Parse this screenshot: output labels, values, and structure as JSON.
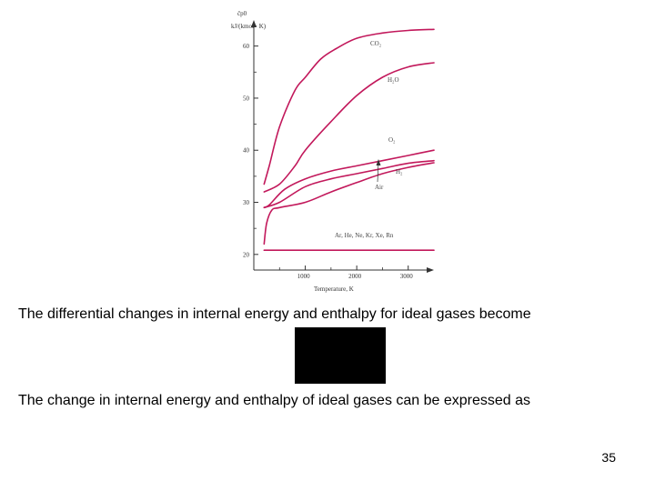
{
  "slide": {
    "paragraph_1": "The differential changes in internal energy and enthalpy for ideal gases become",
    "paragraph_2": "The change in internal energy and enthalpy of ideal gases can be expressed as",
    "page_number": "35"
  },
  "colors": {
    "curve": "#c2185b",
    "axis": "#333333",
    "equation_box": "#000000"
  },
  "chart_data": {
    "type": "line",
    "xlabel": "Temperature, K",
    "ylabel_symbol": "c̄p0",
    "ylabel_units": "kJ/(kmol · K)",
    "xlim": [
      0,
      3500
    ],
    "ylim": [
      17,
      65
    ],
    "x_ticks": [
      1000,
      2000,
      3000
    ],
    "y_ticks": [
      20,
      30,
      40,
      50,
      60
    ],
    "series": [
      {
        "name": "CO2",
        "label": "CO₂",
        "x": [
          200,
          300,
          500,
          800,
          1000,
          1300,
          1600,
          2000,
          2500,
          3000,
          3500
        ],
        "y": [
          33.5,
          37.0,
          44.5,
          51.5,
          54.0,
          57.5,
          59.5,
          61.5,
          62.5,
          63.0,
          63.2
        ]
      },
      {
        "name": "H2O",
        "label": "H₂O",
        "x": [
          200,
          500,
          800,
          1000,
          1500,
          2000,
          2500,
          3000,
          3500
        ],
        "y": [
          32.0,
          33.5,
          37.0,
          40.0,
          45.5,
          50.5,
          54.0,
          56.0,
          56.8
        ]
      },
      {
        "name": "O2",
        "label": "O₂",
        "x": [
          200,
          300,
          600,
          1000,
          1500,
          2000,
          2500,
          3000,
          3500
        ],
        "y": [
          29.0,
          29.5,
          32.5,
          34.5,
          36.0,
          37.0,
          38.0,
          39.0,
          40.0
        ]
      },
      {
        "name": "Air",
        "label": "Air",
        "x": [
          200,
          500,
          1000,
          1500,
          2000,
          2500,
          3000,
          3500
        ],
        "y": [
          29.0,
          30.0,
          33.0,
          34.5,
          35.5,
          36.5,
          37.5,
          38.0
        ]
      },
      {
        "name": "H2",
        "label": "H₂",
        "x": [
          200,
          250,
          350,
          500,
          1000,
          1500,
          2000,
          2500,
          3000,
          3500
        ],
        "y": [
          22.0,
          26.0,
          28.5,
          29.0,
          30.0,
          32.0,
          33.8,
          35.5,
          36.7,
          37.6
        ]
      },
      {
        "name": "Monatomic",
        "label": "Ar, He, Ne, Kr, Xe, Rn",
        "x": [
          200,
          3500
        ],
        "y": [
          20.8,
          20.8
        ]
      }
    ]
  }
}
